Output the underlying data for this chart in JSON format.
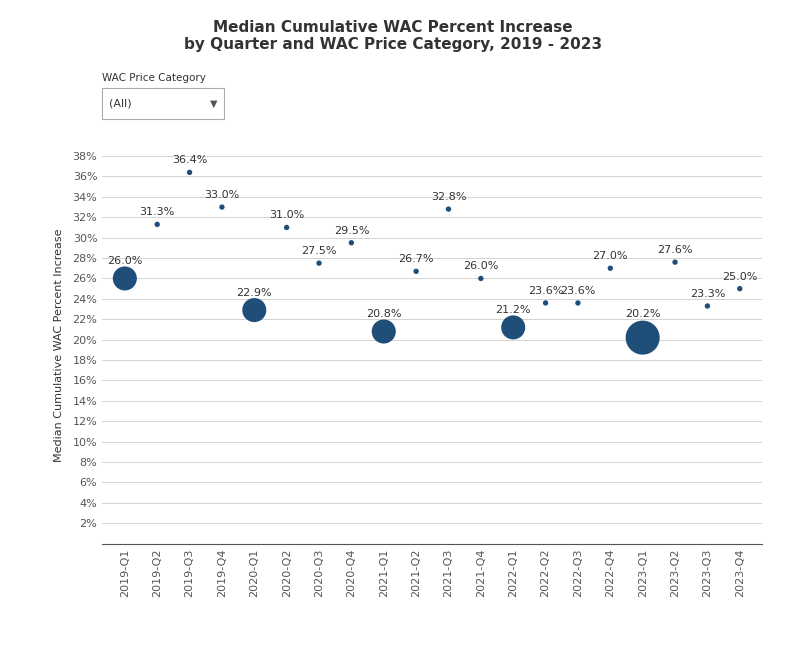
{
  "title_line1": "Median Cumulative WAC Percent Increase",
  "title_line2": "by Quarter and WAC Price Category, 2019 - 2023",
  "ylabel": "Median Cumulative WAC Percent Increase",
  "filter_label": "WAC Price Category",
  "filter_value": "(All)",
  "quarters": [
    "2019-Q1",
    "2019-Q2",
    "2019-Q3",
    "2019-Q4",
    "2020-Q1",
    "2020-Q2",
    "2020-Q3",
    "2020-Q4",
    "2021-Q1",
    "2021-Q2",
    "2021-Q3",
    "2021-Q4",
    "2022-Q1",
    "2022-Q2",
    "2022-Q3",
    "2022-Q4",
    "2023-Q1",
    "2023-Q2",
    "2023-Q3",
    "2023-Q4"
  ],
  "values": [
    26.0,
    31.3,
    36.4,
    33.0,
    22.9,
    31.0,
    27.5,
    29.5,
    20.8,
    26.7,
    32.8,
    26.0,
    21.2,
    23.6,
    23.6,
    27.0,
    20.2,
    27.6,
    23.3,
    25.0
  ],
  "bubble_sizes": [
    300,
    15,
    15,
    15,
    300,
    15,
    15,
    15,
    300,
    15,
    15,
    15,
    300,
    15,
    15,
    15,
    600,
    15,
    15,
    15
  ],
  "dot_color": "#1F4E79",
  "background_color": "#FFFFFF",
  "grid_color": "#CCCCCC",
  "ytick_min": 2,
  "ytick_max": 38,
  "ytick_step": 2,
  "label_fontsize": 8,
  "title_fontsize": 11,
  "axis_label_fontsize": 8,
  "tick_label_fontsize": 8
}
